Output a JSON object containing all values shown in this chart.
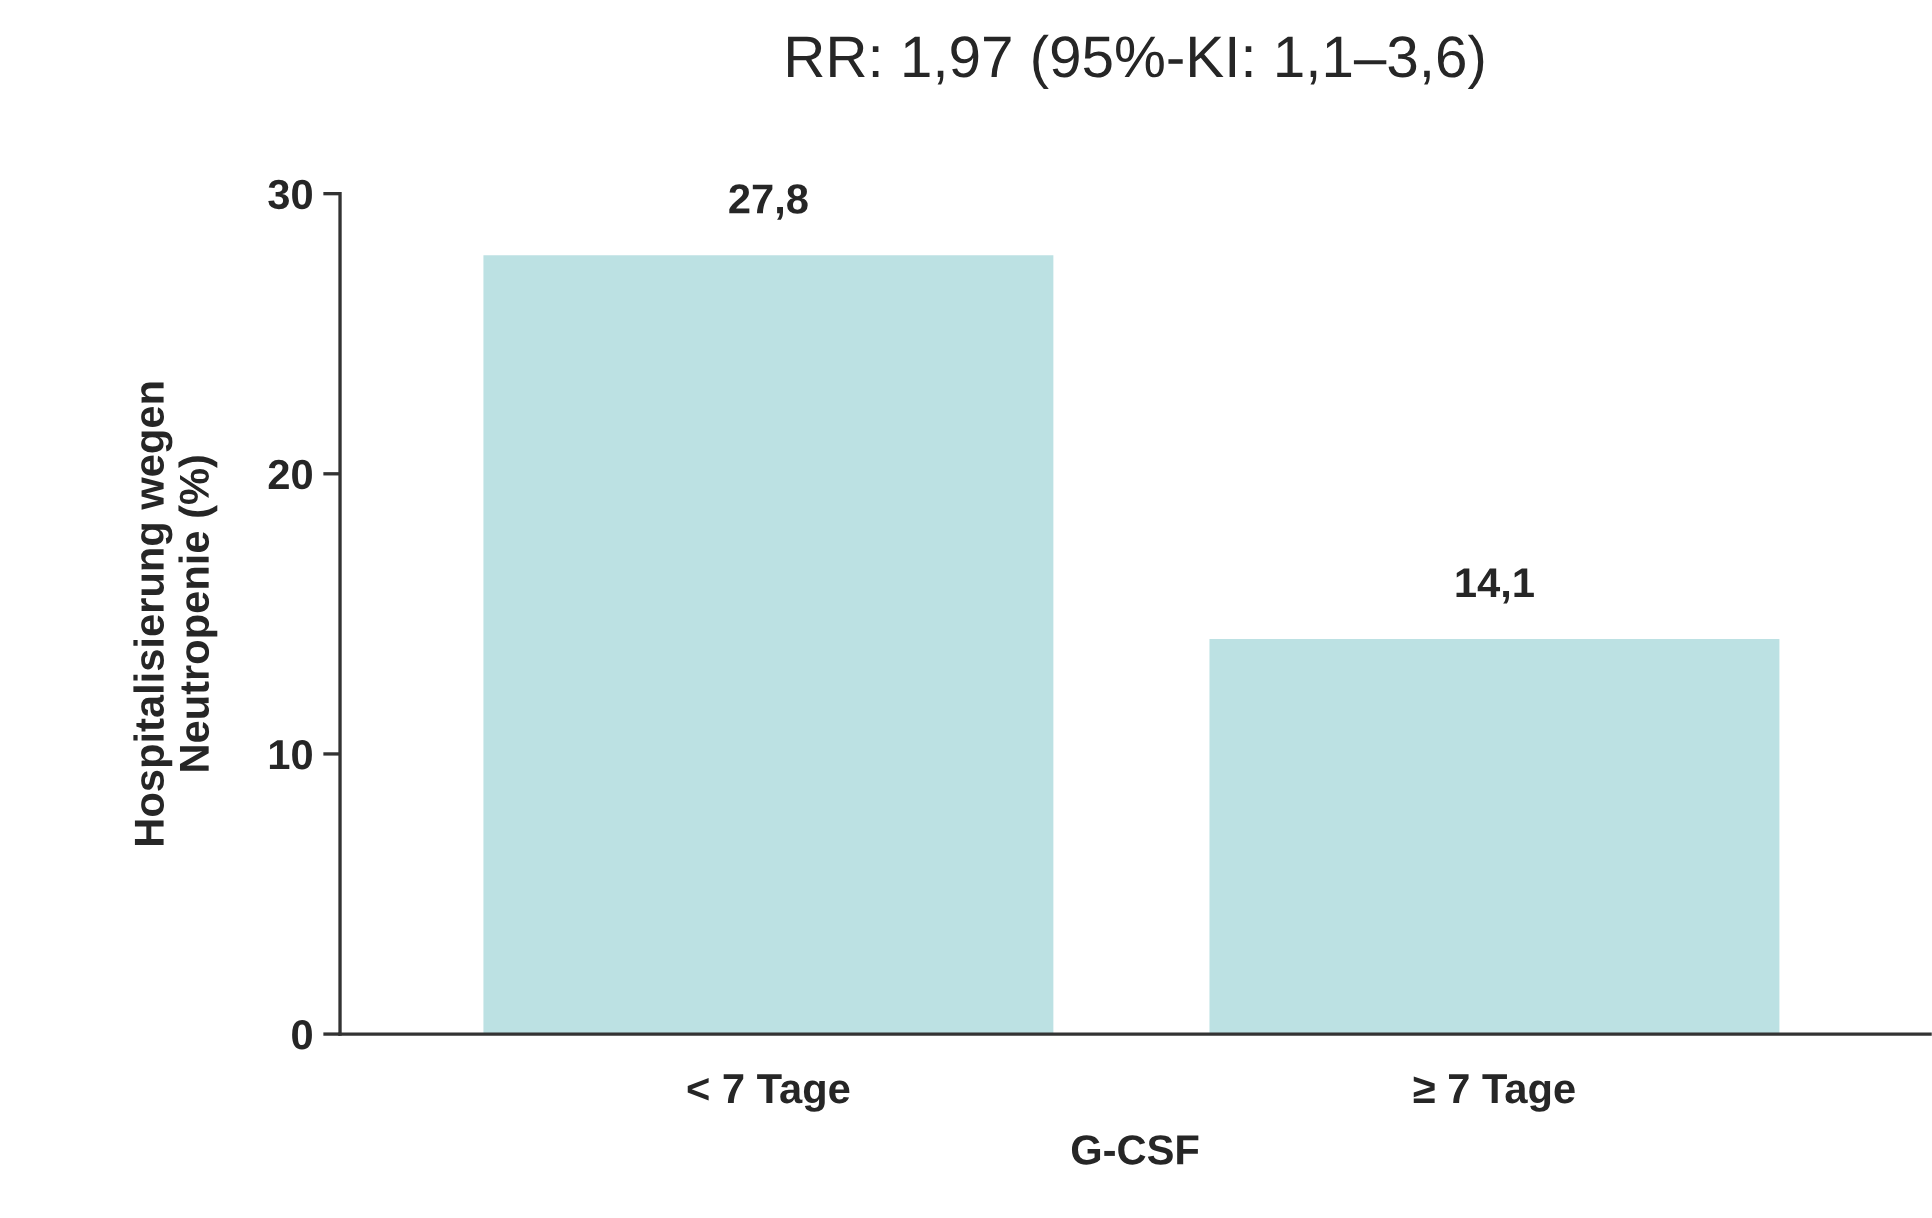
{
  "chart_data": {
    "type": "bar",
    "title": "RR: 1,97 (95%-KI: 1,1–3,6)",
    "xlabel": "G-CSF",
    "ylabel": "Hospitalisierung wegen\nNeutropenie (%)",
    "categories": [
      "< 7 Tage",
      "≥ 7 Tage"
    ],
    "values": [
      27.8,
      14.1
    ],
    "value_labels": [
      "27,8",
      "14,1"
    ],
    "color": "#bce1e3",
    "ylim": [
      0,
      30
    ],
    "yticks": [
      0,
      10,
      20,
      30
    ],
    "grid": false
  }
}
